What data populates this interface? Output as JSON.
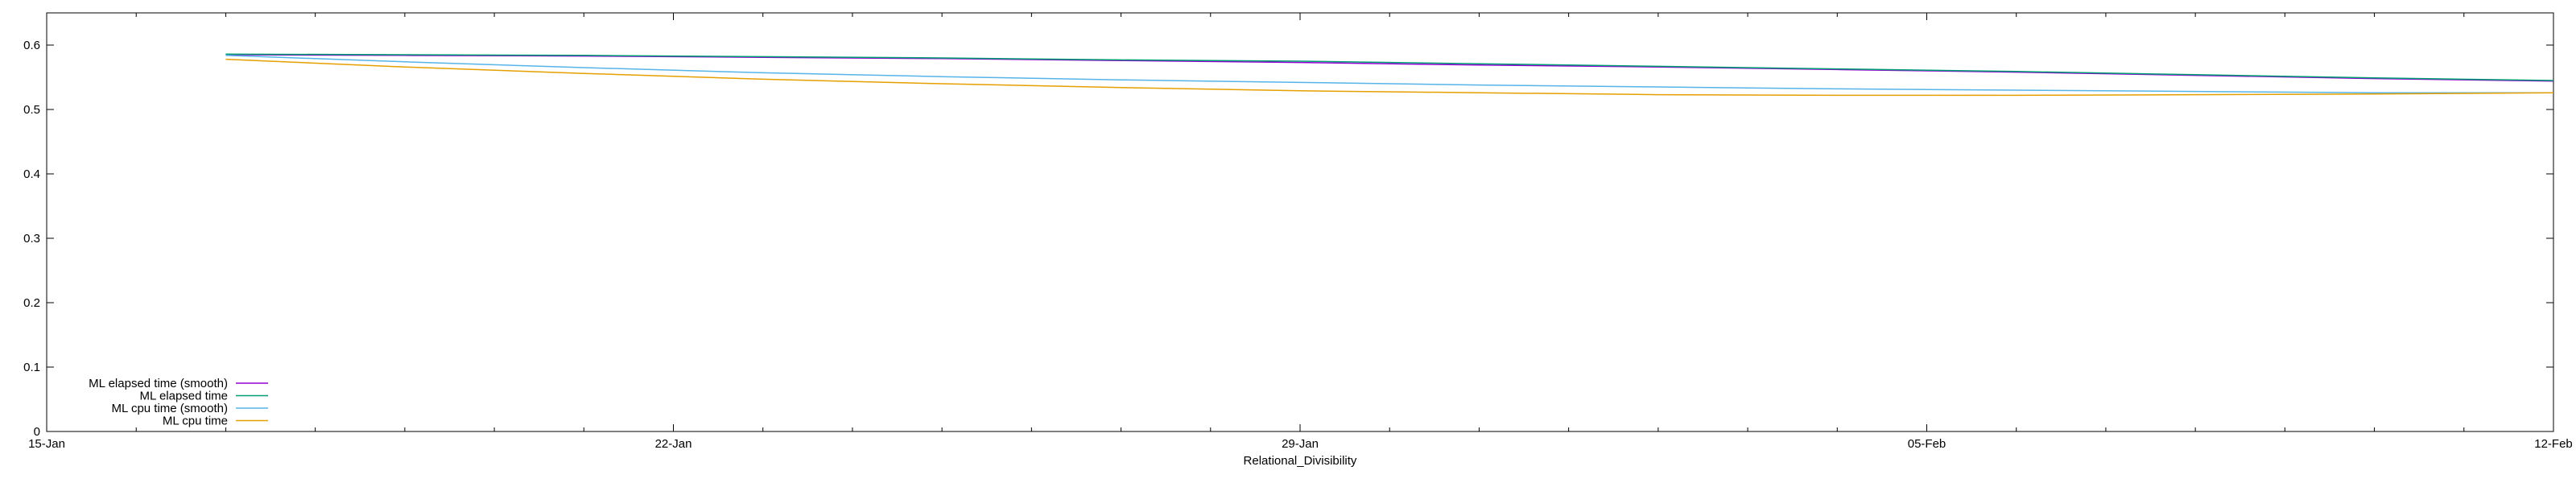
{
  "chart_data": {
    "type": "line",
    "title": "",
    "xlabel": "Relational_Divisibility",
    "ylabel": "",
    "x_ticks": [
      "15-Jan",
      "22-Jan",
      "29-Jan",
      "05-Feb",
      "12-Feb"
    ],
    "xlim": [
      "2024-01-15",
      "2024-02-12"
    ],
    "ylim": [
      0,
      0.65
    ],
    "y_ticks": [
      "0",
      "0.1",
      "0.2",
      "0.3",
      "0.4",
      "0.5",
      "0.6"
    ],
    "y_tick_values": [
      0,
      0.1,
      0.2,
      0.3,
      0.4,
      0.5,
      0.6
    ],
    "grid": false,
    "legend_position": "bottom-left",
    "x": [
      "2024-01-17",
      "2024-01-19",
      "2024-01-21",
      "2024-01-23",
      "2024-01-25",
      "2024-01-27",
      "2024-01-29",
      "2024-01-31",
      "2024-02-02",
      "2024-02-04",
      "2024-02-06",
      "2024-02-08",
      "2024-02-10",
      "2024-02-12"
    ],
    "series": [
      {
        "name": "ML elapsed time (smooth)",
        "color": "#9400d3",
        "values": [
          0.585,
          0.584,
          0.583,
          0.581,
          0.579,
          0.576,
          0.573,
          0.569,
          0.566,
          0.562,
          0.558,
          0.553,
          0.548,
          0.544
        ]
      },
      {
        "name": "ML elapsed time",
        "color": "#009e73",
        "values": [
          0.586,
          0.585,
          0.584,
          0.582,
          0.58,
          0.577,
          0.575,
          0.571,
          0.567,
          0.563,
          0.559,
          0.554,
          0.549,
          0.545
        ]
      },
      {
        "name": "ML cpu time (smooth)",
        "color": "#56b4e9",
        "values": [
          0.584,
          0.574,
          0.565,
          0.557,
          0.551,
          0.546,
          0.542,
          0.538,
          0.535,
          0.532,
          0.53,
          0.528,
          0.526,
          0.526
        ]
      },
      {
        "name": "ML cpu time",
        "color": "#e69f00",
        "values": [
          0.578,
          0.566,
          0.556,
          0.547,
          0.54,
          0.534,
          0.529,
          0.526,
          0.523,
          0.522,
          0.522,
          0.523,
          0.524,
          0.526
        ]
      }
    ]
  }
}
